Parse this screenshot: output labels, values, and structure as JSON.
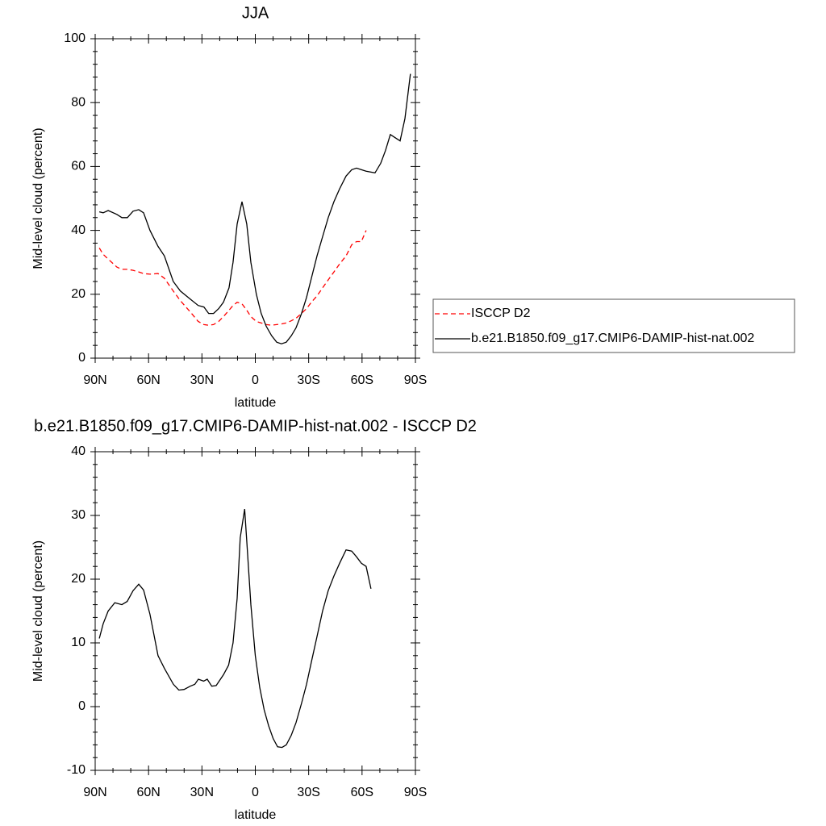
{
  "chart_data": [
    {
      "type": "line",
      "title": "JJA",
      "xlabel": "latitude",
      "ylabel": "Mid-level cloud (percent)",
      "x": [
        87.7,
        85.5,
        82.7,
        77.8,
        75.0,
        71.9,
        68.7,
        65.5,
        62.8,
        59.2,
        54.7,
        51.1,
        46.1,
        42.1,
        36.6,
        32.1,
        28.9,
        26.2,
        23.5,
        20.6,
        17.9,
        14.8,
        12.5,
        10.2,
        7.5,
        4.8,
        2.5,
        -0.6,
        -3.3,
        -6.1,
        -9.2,
        -12.0,
        -14.7,
        -17.4,
        -20.2,
        -22.9,
        -26.0,
        -28.8,
        -31.5,
        -34.7,
        -37.8,
        -41.0,
        -44.2,
        -47.4,
        -51.0,
        -54.2,
        -56.9,
        -59.6,
        -62.3,
        -67.3,
        -70.5,
        -73.2,
        -75.9,
        -81.4,
        -84.1,
        -87.2
      ],
      "series": [
        {
          "name": "ISCCP D2",
          "color": "#ff0000",
          "dashed": true,
          "values": [
            34.5,
            32.5,
            31,
            28.5,
            27.8,
            27.8,
            27.5,
            27,
            26.5,
            26.3,
            26.5,
            25,
            21,
            18,
            14.5,
            11.5,
            10.5,
            10.3,
            10.5,
            11.5,
            13,
            15,
            16.5,
            17.5,
            17,
            15,
            13,
            11.5,
            11,
            10.5,
            10.3,
            10.5,
            10.7,
            11,
            11.7,
            12.5,
            14,
            15.5,
            17.5,
            19.5,
            22,
            24.5,
            27,
            29.5,
            32,
            35.5,
            36.5,
            36.5,
            40,
            null,
            null,
            null,
            null,
            null,
            null,
            null
          ]
        },
        {
          "name": "b.e21.B1850.f09_g17.CMIP6-DAMIP-hist-nat.002",
          "color": "#000000",
          "dashed": false,
          "values": [
            45.8,
            45.5,
            46.2,
            45,
            44,
            44,
            46,
            46.5,
            45.5,
            40,
            35,
            32,
            24,
            21,
            18.5,
            16.5,
            16,
            14,
            14,
            15.5,
            17.5,
            22,
            30,
            42,
            49,
            42,
            30,
            20,
            14,
            10,
            7,
            5,
            4.5,
            5,
            7,
            9.5,
            14,
            19,
            25,
            32,
            38,
            44,
            49,
            53,
            57,
            59,
            59.5,
            59,
            58.5,
            58,
            61,
            65,
            70,
            68,
            75,
            89
          ]
        }
      ],
      "xlim": [
        90,
        -90
      ],
      "xticks": [
        {
          "value": 90,
          "label": "90N"
        },
        {
          "value": 60,
          "label": "60N"
        },
        {
          "value": 30,
          "label": "30N"
        },
        0,
        {
          "value": -30,
          "label": "30S"
        },
        {
          "value": -60,
          "label": "60S"
        },
        {
          "value": -90,
          "label": "90S"
        }
      ],
      "ylim": [
        0,
        100
      ],
      "yticks": [
        0,
        20,
        40,
        60,
        80,
        100
      ],
      "legend": "right"
    },
    {
      "type": "line",
      "title": "b.e21.B1850.f09_g17.CMIP6-DAMIP-hist-nat.002 - ISCCP D2",
      "xlabel": "latitude",
      "ylabel": "Mid-level cloud (percent)",
      "x": [
        87.7,
        85.5,
        82.7,
        79,
        75,
        72,
        68.7,
        65.5,
        62.8,
        59.2,
        54.7,
        51.1,
        46,
        43,
        40,
        36.6,
        34,
        32,
        29,
        27,
        24.5,
        22,
        17.9,
        15,
        12.5,
        10.2,
        8.5,
        6,
        4.8,
        2.5,
        0,
        -2.5,
        -5,
        -7.5,
        -10,
        -12.5,
        -15,
        -17.4,
        -20.2,
        -22.9,
        -26,
        -28.8,
        -31.5,
        -34.7,
        -37.8,
        -41,
        -44.2,
        -47.4,
        -51,
        -54.2,
        -56.9,
        -59.6,
        -62.3,
        -65
      ],
      "values": [
        10.7,
        13,
        15,
        16.3,
        16,
        16.5,
        18.2,
        19.2,
        18.3,
        14.5,
        8,
        6,
        3.5,
        2.6,
        2.7,
        3.2,
        3.5,
        4.3,
        4,
        4.3,
        3.2,
        3.3,
        5,
        6.5,
        10,
        17,
        26.5,
        31,
        26,
        16,
        8,
        3,
        -0.5,
        -3,
        -5,
        -6.3,
        -6.4,
        -6,
        -4.5,
        -2.5,
        0.5,
        3.5,
        7,
        11,
        15,
        18.2,
        20.5,
        22.5,
        24.6,
        24.4,
        23.5,
        22.5,
        22,
        18.5
      ],
      "color": "#000000",
      "xlim": [
        90,
        -90
      ],
      "xticks": [
        {
          "value": 90,
          "label": "90N"
        },
        {
          "value": 60,
          "label": "60N"
        },
        {
          "value": 30,
          "label": "30N"
        },
        0,
        {
          "value": -30,
          "label": "30S"
        },
        {
          "value": -60,
          "label": "60S"
        },
        {
          "value": -90,
          "label": "90S"
        }
      ],
      "ylim": [
        -10,
        40
      ],
      "yticks": [
        -10,
        0,
        10,
        20,
        30,
        40
      ]
    }
  ]
}
